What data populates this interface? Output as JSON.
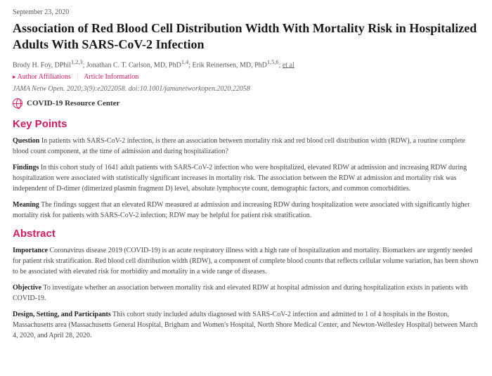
{
  "date": "September 23, 2020",
  "title": "Association of Red Blood Cell Distribution Width With Mortality Risk in Hospitalized Adults With SARS-CoV-2 Infection",
  "authors": {
    "list": "Brody H. Foy, DPhil",
    "aff1": "1,2,3",
    "sep1": "; Jonathan C. T. Carlson, MD, PhD",
    "aff2": "1,4",
    "sep2": "; Erik Reinertsen, MD, PhD",
    "aff3": "1,5,6",
    "sep3": "; ",
    "etal": "et al"
  },
  "metaLinks": {
    "affiliations": "Author Affiliations",
    "articleInfo": "Article Information"
  },
  "citation": "JAMA Netw Open. 2020;3(9):e2022058. doi:10.1001/jamanetworkopen.2020.22058",
  "resource": "COVID-19 Resource Center",
  "headings": {
    "keyPoints": "Key Points",
    "abstract": "Abstract"
  },
  "keyPoints": {
    "question": {
      "lead": "Question",
      "body": "  In patients with SARS-CoV-2 infection, is there an association between mortality risk and red blood cell distribution width (RDW), a routine complete blood count component, at the time of admission and during hospitalization?"
    },
    "findings": {
      "lead": "Findings",
      "body": "  In this cohort study of 1641 adult patients with SARS-CoV-2 infection who were hospitalized, elevated RDW at admission and increasing RDW during hospitalization were associated with statistically significant increases in mortality risk. The association between the RDW at admission and mortality risk was independent of D-dimer (dimerized plasmin fragment D) level, absolute lymphocyte count, demographic factors, and common comorbidities."
    },
    "meaning": {
      "lead": "Meaning",
      "body": "  The findings suggest that an elevated RDW measured at admission and increasing RDW during hospitalization were associated with significantly higher mortality risk for patients with SARS-CoV-2 infection; RDW may be helpful for patient risk stratification."
    }
  },
  "abstract": {
    "importance": {
      "lead": "Importance",
      "body": "  Coronavirus disease 2019 (COVID-19) is an acute respiratory illness with a high rate of hospitalization and mortality. Biomarkers are urgently needed for patient risk stratification. Red blood cell distribution width (RDW), a component of complete blood counts that reflects cellular volume variation, has been shown to be associated with elevated risk for morbidity and mortality in a wide range of diseases."
    },
    "objective": {
      "lead": "Objective",
      "body": "  To investigate whether an association between mortality risk and elevated RDW at hospital admission and during hospitalization exists in patients with COVID-19."
    },
    "design": {
      "lead": "Design, Setting, and Participants",
      "body": "  This cohort study included adults diagnosed with SARS-CoV-2 infection and admitted to 1 of 4 hospitals in the Boston, Massachusetts area (Massachusetts General Hospital, Brigham and Women's Hospital, North Shore Medical Center, and Newton-Wellesley Hospital) between March 4, 2020, and April 28, 2020."
    }
  }
}
